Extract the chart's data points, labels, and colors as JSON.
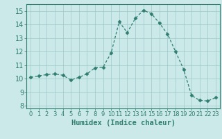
{
  "x": [
    0,
    1,
    2,
    3,
    4,
    5,
    6,
    7,
    8,
    9,
    10,
    11,
    12,
    13,
    14,
    15,
    16,
    17,
    18,
    19,
    20,
    21,
    22,
    23
  ],
  "y": [
    10.1,
    10.2,
    10.3,
    10.35,
    10.25,
    9.9,
    10.1,
    10.35,
    10.8,
    10.85,
    11.9,
    14.2,
    13.4,
    14.45,
    15.05,
    14.8,
    14.1,
    13.3,
    12.0,
    10.7,
    8.75,
    8.4,
    8.35,
    8.6
  ],
  "line_color": "#2e7d6e",
  "marker": "D",
  "marker_size": 2.5,
  "bg_color": "#cce9e9",
  "grid_color": "#9dc8c8",
  "xlabel": "Humidex (Indice chaleur)",
  "xlabel_fontsize": 7.5,
  "tick_fontsize": 7,
  "ylim": [
    7.8,
    15.5
  ],
  "xlim": [
    -0.5,
    23.5
  ],
  "yticks": [
    8,
    9,
    10,
    11,
    12,
    13,
    14,
    15
  ],
  "xticks": [
    0,
    1,
    2,
    3,
    4,
    5,
    6,
    7,
    8,
    9,
    10,
    11,
    12,
    13,
    14,
    15,
    16,
    17,
    18,
    19,
    20,
    21,
    22,
    23
  ]
}
